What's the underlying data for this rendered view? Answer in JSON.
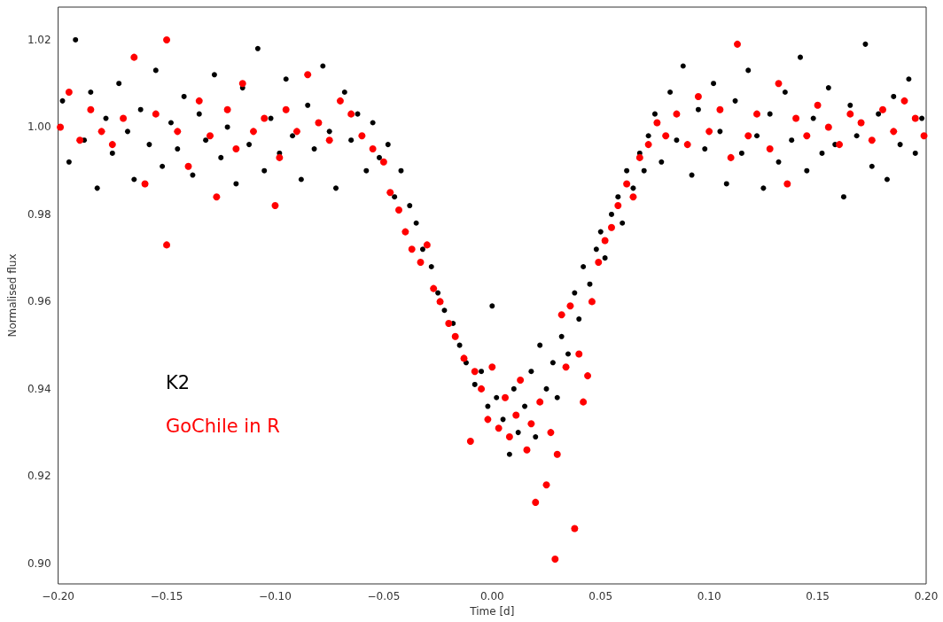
{
  "chart_data": {
    "type": "scatter",
    "xlabel": "Time [d]",
    "ylabel": "Normalised flux",
    "xlim": [
      -0.2,
      0.2
    ],
    "ylim": [
      0.8953,
      1.0275
    ],
    "xticks": [
      {
        "value": -0.2,
        "label": "−0.20"
      },
      {
        "value": -0.15,
        "label": "−0.15"
      },
      {
        "value": -0.1,
        "label": "−0.10"
      },
      {
        "value": -0.05,
        "label": "−0.05"
      },
      {
        "value": 0,
        "label": "0.00"
      },
      {
        "value": 0.05,
        "label": "0.05"
      },
      {
        "value": 0.1,
        "label": "0.10"
      },
      {
        "value": 0.15,
        "label": "0.15"
      },
      {
        "value": 0.2,
        "label": "0.20"
      }
    ],
    "yticks": [
      {
        "value": 0.9,
        "label": "0.90"
      },
      {
        "value": 0.92,
        "label": "0.92"
      },
      {
        "value": 0.94,
        "label": "0.94"
      },
      {
        "value": 0.96,
        "label": "0.96"
      },
      {
        "value": 0.98,
        "label": "0.98"
      },
      {
        "value": 1.0,
        "label": "1.00"
      },
      {
        "value": 1.02,
        "label": "1.02"
      }
    ],
    "grid": false,
    "legend": false,
    "marker": "circle",
    "series": [
      {
        "name": "K2",
        "color": "#000000",
        "x": [
          -0.198,
          -0.195,
          -0.192,
          -0.188,
          -0.185,
          -0.182,
          -0.178,
          -0.175,
          -0.172,
          -0.168,
          -0.165,
          -0.162,
          -0.158,
          -0.155,
          -0.152,
          -0.148,
          -0.145,
          -0.142,
          -0.138,
          -0.135,
          -0.132,
          -0.128,
          -0.125,
          -0.122,
          -0.118,
          -0.115,
          -0.112,
          -0.108,
          -0.105,
          -0.102,
          -0.098,
          -0.095,
          -0.092,
          -0.088,
          -0.085,
          -0.082,
          -0.078,
          -0.075,
          -0.072,
          -0.068,
          -0.065,
          -0.062,
          -0.058,
          -0.055,
          -0.052,
          -0.048,
          -0.045,
          -0.042,
          -0.038,
          -0.035,
          -0.032,
          -0.028,
          -0.025,
          -0.022,
          -0.018,
          -0.015,
          -0.012,
          -0.008,
          -0.005,
          -0.002,
          0.0,
          0.002,
          0.005,
          0.008,
          0.01,
          0.012,
          0.015,
          0.018,
          0.02,
          0.022,
          0.025,
          0.028,
          0.03,
          0.032,
          0.035,
          0.038,
          0.04,
          0.042,
          0.045,
          0.048,
          0.05,
          0.052,
          0.055,
          0.058,
          0.06,
          0.062,
          0.065,
          0.068,
          0.07,
          0.072,
          0.075,
          0.078,
          0.082,
          0.085,
          0.088,
          0.092,
          0.095,
          0.098,
          0.102,
          0.105,
          0.108,
          0.112,
          0.115,
          0.118,
          0.122,
          0.125,
          0.128,
          0.132,
          0.135,
          0.138,
          0.142,
          0.145,
          0.148,
          0.152,
          0.155,
          0.158,
          0.162,
          0.165,
          0.168,
          0.172,
          0.175,
          0.178,
          0.182,
          0.185,
          0.188,
          0.192,
          0.195,
          0.198
        ],
        "values": [
          1.006,
          0.992,
          1.02,
          0.997,
          1.008,
          0.986,
          1.002,
          0.994,
          1.01,
          0.999,
          0.988,
          1.004,
          0.996,
          1.013,
          0.991,
          1.001,
          0.995,
          1.007,
          0.989,
          1.003,
          0.997,
          1.012,
          0.993,
          1.0,
          0.987,
          1.009,
          0.996,
          1.018,
          0.99,
          1.002,
          0.994,
          1.011,
          0.998,
          0.988,
          1.005,
          0.995,
          1.014,
          0.999,
          0.986,
          1.008,
          0.997,
          1.003,
          0.99,
          1.001,
          0.993,
          0.996,
          0.984,
          0.99,
          0.982,
          0.978,
          0.972,
          0.968,
          0.962,
          0.958,
          0.955,
          0.95,
          0.946,
          0.941,
          0.944,
          0.936,
          0.959,
          0.938,
          0.933,
          0.925,
          0.94,
          0.93,
          0.936,
          0.944,
          0.929,
          0.95,
          0.94,
          0.946,
          0.938,
          0.952,
          0.948,
          0.962,
          0.956,
          0.968,
          0.964,
          0.972,
          0.976,
          0.97,
          0.98,
          0.984,
          0.978,
          0.99,
          0.986,
          0.994,
          0.99,
          0.998,
          1.003,
          0.992,
          1.008,
          0.997,
          1.014,
          0.989,
          1.004,
          0.995,
          1.01,
          0.999,
          0.987,
          1.006,
          0.994,
          1.013,
          0.998,
          0.986,
          1.003,
          0.992,
          1.008,
          0.997,
          1.016,
          0.99,
          1.002,
          0.994,
          1.009,
          0.996,
          0.984,
          1.005,
          0.998,
          1.019,
          0.991,
          1.003,
          0.988,
          1.007,
          0.996,
          1.011,
          0.994,
          1.002
        ]
      },
      {
        "name": "GoChile in R",
        "color": "#ff0000",
        "x": [
          -0.199,
          -0.195,
          -0.19,
          -0.185,
          -0.18,
          -0.175,
          -0.17,
          -0.165,
          -0.16,
          -0.155,
          -0.15,
          -0.15,
          -0.145,
          -0.14,
          -0.135,
          -0.13,
          -0.127,
          -0.122,
          -0.118,
          -0.115,
          -0.11,
          -0.105,
          -0.1,
          -0.098,
          -0.095,
          -0.09,
          -0.085,
          -0.08,
          -0.075,
          -0.07,
          -0.065,
          -0.06,
          -0.055,
          -0.05,
          -0.047,
          -0.043,
          -0.04,
          -0.037,
          -0.033,
          -0.03,
          -0.027,
          -0.024,
          -0.02,
          -0.017,
          -0.013,
          -0.01,
          -0.008,
          -0.005,
          -0.002,
          0.0,
          0.003,
          0.006,
          0.008,
          0.011,
          0.013,
          0.016,
          0.018,
          0.02,
          0.022,
          0.025,
          0.027,
          0.029,
          0.03,
          0.032,
          0.034,
          0.036,
          0.038,
          0.04,
          0.042,
          0.044,
          0.046,
          0.049,
          0.052,
          0.055,
          0.058,
          0.062,
          0.065,
          0.068,
          0.072,
          0.076,
          0.08,
          0.085,
          0.09,
          0.095,
          0.1,
          0.105,
          0.11,
          0.113,
          0.118,
          0.122,
          0.128,
          0.132,
          0.136,
          0.14,
          0.145,
          0.15,
          0.155,
          0.16,
          0.165,
          0.17,
          0.175,
          0.18,
          0.185,
          0.19,
          0.195,
          0.199
        ],
        "values": [
          1.0,
          1.008,
          0.997,
          1.004,
          0.999,
          0.996,
          1.002,
          1.016,
          0.987,
          1.003,
          1.02,
          0.973,
          0.999,
          0.991,
          1.006,
          0.998,
          0.984,
          1.004,
          0.995,
          1.01,
          0.999,
          1.002,
          0.982,
          0.993,
          1.004,
          0.999,
          1.012,
          1.001,
          0.997,
          1.006,
          1.003,
          0.998,
          0.995,
          0.992,
          0.985,
          0.981,
          0.976,
          0.972,
          0.969,
          0.973,
          0.963,
          0.96,
          0.955,
          0.952,
          0.947,
          0.928,
          0.944,
          0.94,
          0.933,
          0.945,
          0.931,
          0.938,
          0.929,
          0.934,
          0.942,
          0.926,
          0.932,
          0.914,
          0.937,
          0.918,
          0.93,
          0.901,
          0.925,
          0.957,
          0.945,
          0.959,
          0.908,
          0.948,
          0.937,
          0.943,
          0.96,
          0.969,
          0.974,
          0.977,
          0.982,
          0.987,
          0.984,
          0.993,
          0.996,
          1.001,
          0.998,
          1.003,
          0.996,
          1.007,
          0.999,
          1.004,
          0.993,
          1.019,
          0.998,
          1.003,
          0.995,
          1.01,
          0.987,
          1.002,
          0.998,
          1.005,
          1.0,
          0.996,
          1.003,
          1.001,
          0.997,
          1.004,
          0.999,
          1.006,
          1.002,
          0.998
        ]
      }
    ]
  }
}
